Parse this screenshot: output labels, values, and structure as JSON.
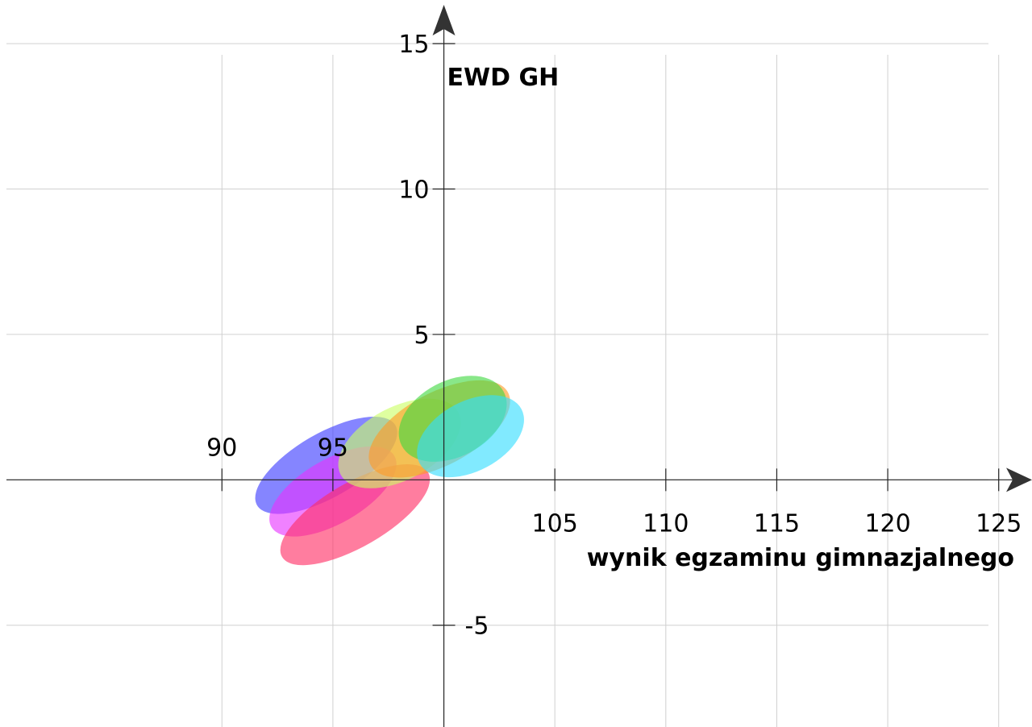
{
  "chart_data": {
    "type": "scatter",
    "title": "",
    "xlabel": "wynik egzaminu gimnazjalnego",
    "ylabel": "EWD GH",
    "xlim": [
      80,
      126.5
    ],
    "ylim": [
      -8.5,
      16.5
    ],
    "grid": true,
    "x_ticks": [
      {
        "value": 90,
        "label": "90"
      },
      {
        "value": 95,
        "label": "95"
      },
      {
        "value": 105,
        "label": "105"
      },
      {
        "value": 110,
        "label": "110"
      },
      {
        "value": 115,
        "label": "115"
      },
      {
        "value": 120,
        "label": "120"
      },
      {
        "value": 125,
        "label": "125"
      }
    ],
    "y_ticks": [
      {
        "value": 15,
        "label": "15"
      },
      {
        "value": 10,
        "label": "10"
      },
      {
        "value": 5,
        "label": "5"
      },
      {
        "value": -5,
        "label": "-5"
      }
    ],
    "x_grid": [
      90,
      95,
      100,
      105,
      110,
      115,
      120,
      125
    ],
    "y_grid": [
      -5,
      0,
      5,
      10,
      15
    ],
    "ellipses": [
      {
        "cx": 94.7,
        "cy": 0.5,
        "rx": 3.6,
        "ry": 1.1,
        "angle_deg": 30,
        "color": "#3a3aff"
      },
      {
        "cx": 95.0,
        "cy": -0.4,
        "rx": 3.2,
        "ry": 1.1,
        "angle_deg": 30,
        "color": "#e633ff"
      },
      {
        "cx": 96.0,
        "cy": -1.2,
        "rx": 3.8,
        "ry": 1.1,
        "angle_deg": 30,
        "color": "#ff2d64"
      },
      {
        "cx": 98.0,
        "cy": 1.25,
        "rx": 3.0,
        "ry": 1.25,
        "angle_deg": 28,
        "color": "#ccff66"
      },
      {
        "cx": 99.8,
        "cy": 1.75,
        "rx": 3.5,
        "ry": 1.25,
        "angle_deg": 28,
        "color": "#ff9b26"
      },
      {
        "cx": 100.4,
        "cy": 2.1,
        "rx": 2.6,
        "ry": 1.3,
        "angle_deg": 28,
        "color": "#40d940"
      },
      {
        "cx": 101.2,
        "cy": 1.5,
        "rx": 2.6,
        "ry": 1.2,
        "angle_deg": 28,
        "color": "#33ddff"
      }
    ]
  }
}
